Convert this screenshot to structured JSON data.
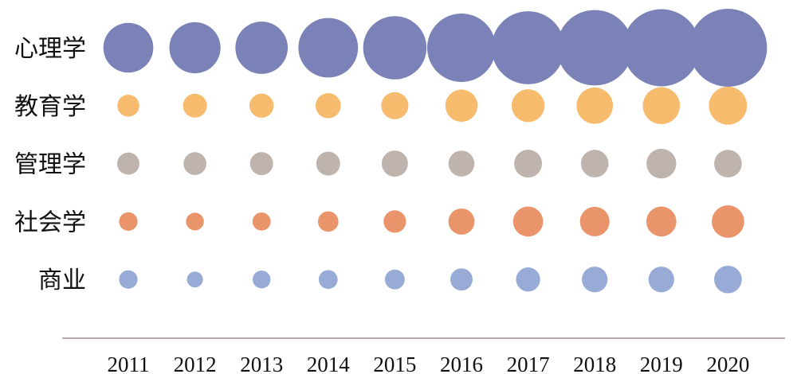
{
  "chart_data": {
    "type": "bubble",
    "x": [
      "2011",
      "2012",
      "2013",
      "2014",
      "2015",
      "2016",
      "2017",
      "2018",
      "2019",
      "2020"
    ],
    "series": [
      {
        "name": "心理学",
        "color": "#7b82b8",
        "values": [
          980,
          1030,
          1080,
          1400,
          1580,
          1850,
          2100,
          2250,
          2350,
          2400
        ]
      },
      {
        "name": "教育学",
        "color": "#f5b560",
        "values": [
          190,
          225,
          230,
          250,
          290,
          410,
          425,
          520,
          540,
          570
        ]
      },
      {
        "name": "管理学",
        "color": "#b8aca6",
        "values": [
          195,
          205,
          210,
          225,
          270,
          265,
          305,
          300,
          350,
          300
        ]
      },
      {
        "name": "社会学",
        "color": "#e88b60",
        "values": [
          135,
          125,
          130,
          165,
          200,
          270,
          355,
          345,
          355,
          415
        ]
      },
      {
        "name": "商业",
        "color": "#8ea4d2",
        "values": [
          135,
          100,
          125,
          140,
          155,
          195,
          230,
          260,
          260,
          300
        ]
      }
    ],
    "title": "",
    "xlabel": "",
    "ylabel": "",
    "grid": false,
    "legend": "none",
    "axis_color": "#b8aab3"
  }
}
